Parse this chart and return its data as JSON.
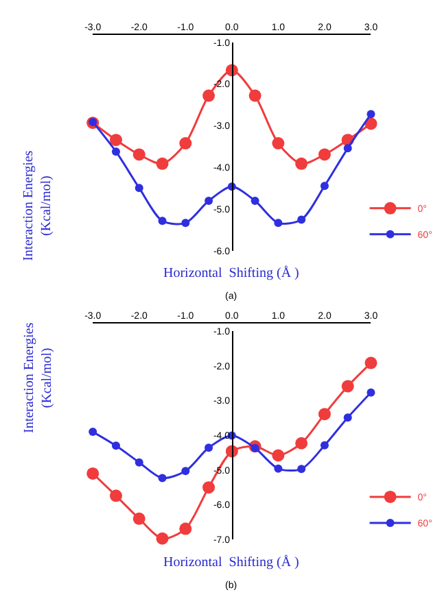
{
  "chart_data": [
    {
      "type": "line",
      "xlabel": "Horizontal  Shifting (Å )",
      "ylabel": "Interaction Energies\n(Kcal/mol)",
      "annotations": [
        "(a)"
      ],
      "x": [
        -3.0,
        -2.5,
        -2.0,
        -1.5,
        -1.0,
        -0.5,
        0.0,
        0.5,
        1.0,
        1.5,
        2.0,
        2.5,
        3.0
      ],
      "xlim": [
        -3,
        3
      ],
      "xticks": [
        {
          "value": -3,
          "label": "-3.0"
        },
        {
          "value": -2,
          "label": "-2.0"
        },
        {
          "value": -1,
          "label": "-1.0"
        },
        {
          "value": 0,
          "label": "0.0"
        },
        {
          "value": 1,
          "label": "1.0"
        },
        {
          "value": 2,
          "label": "2.0"
        },
        {
          "value": 3,
          "label": "3.0"
        }
      ],
      "ylim": [
        -6,
        -1
      ],
      "yticks": [
        {
          "value": -1,
          "label": "-1.0"
        },
        {
          "value": -2,
          "label": "-2.0"
        },
        {
          "value": -3,
          "label": "-3.0"
        },
        {
          "value": -4,
          "label": "-4.0"
        },
        {
          "value": -5,
          "label": "-5.0"
        },
        {
          "value": -6,
          "label": "-6.0"
        }
      ],
      "series": [
        {
          "name": "0°",
          "color": "#f03c3c",
          "values": [
            -2.93,
            -3.34,
            -3.69,
            -3.91,
            -3.42,
            -2.28,
            -1.67,
            -2.28,
            -3.42,
            -3.91,
            -3.69,
            -3.34,
            -2.95
          ]
        },
        {
          "name": "60°",
          "color": "#2f2fe0",
          "values": [
            -2.91,
            -3.62,
            -4.49,
            -5.28,
            -5.33,
            -4.8,
            -4.46,
            -4.8,
            -5.33,
            -5.25,
            -4.44,
            -3.54,
            -2.72
          ]
        }
      ],
      "legend": "right",
      "marker": "circle",
      "line_style": "solid"
    },
    {
      "type": "line",
      "xlabel": "Horizontal  Shifting (Å )",
      "ylabel": "Interaction Energies\n(Kcal/mol)",
      "annotations": [
        "(b)"
      ],
      "x": [
        -3.0,
        -2.5,
        -2.0,
        -1.5,
        -1.0,
        -0.5,
        0.0,
        0.5,
        1.0,
        1.5,
        2.0,
        2.5,
        3.0
      ],
      "xlim": [
        -3,
        3
      ],
      "xticks": [
        {
          "value": -3,
          "label": "-3.0"
        },
        {
          "value": -2,
          "label": "-2.0"
        },
        {
          "value": -1,
          "label": "-1.0"
        },
        {
          "value": 0,
          "label": "0.0"
        },
        {
          "value": 1,
          "label": "1.0"
        },
        {
          "value": 2,
          "label": "2.0"
        },
        {
          "value": 3,
          "label": "3.0"
        }
      ],
      "ylim": [
        -7,
        -1
      ],
      "yticks": [
        {
          "value": -1,
          "label": "-1.0"
        },
        {
          "value": -2,
          "label": "-2.0"
        },
        {
          "value": -3,
          "label": "-3.0"
        },
        {
          "value": -4,
          "label": "-4.0"
        },
        {
          "value": -5,
          "label": "-5.0"
        },
        {
          "value": -6,
          "label": "-6.0"
        },
        {
          "value": -7,
          "label": "-7.0"
        }
      ],
      "series": [
        {
          "name": "0°",
          "color": "#f03c3c",
          "values": [
            -5.1,
            -5.74,
            -6.4,
            -6.97,
            -6.69,
            -5.5,
            -4.46,
            -4.32,
            -4.58,
            -4.23,
            -3.39,
            -2.59,
            -1.92
          ]
        },
        {
          "name": "60°",
          "color": "#2f2fe0",
          "values": [
            -3.9,
            -4.3,
            -4.78,
            -5.23,
            -5.03,
            -4.36,
            -4.01,
            -4.37,
            -4.96,
            -4.97,
            -4.29,
            -3.49,
            -2.77
          ]
        }
      ],
      "legend": "right",
      "marker": "circle",
      "line_style": "solid"
    }
  ]
}
